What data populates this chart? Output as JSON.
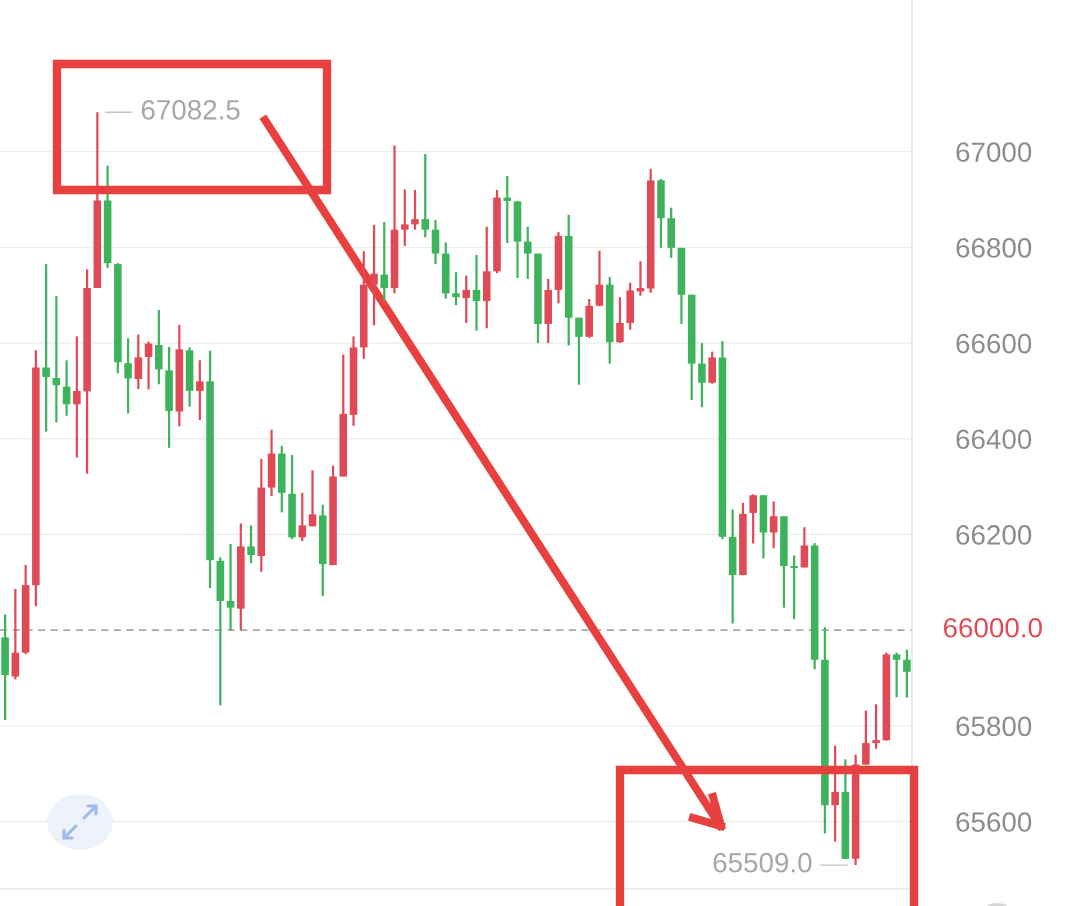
{
  "chart_data": {
    "type": "candlestick",
    "categories": [
      null,
      null,
      null,
      null,
      null,
      null,
      null,
      null,
      null,
      null,
      null,
      null,
      null,
      null,
      null,
      null,
      null,
      null,
      null,
      null,
      null,
      null,
      null,
      null,
      null,
      null,
      null,
      null,
      null,
      null,
      null,
      null,
      null,
      null,
      null,
      null,
      null,
      null,
      null,
      null,
      null,
      null,
      null,
      null,
      null,
      null,
      null,
      null,
      null,
      null,
      null,
      null,
      null,
      null,
      null,
      null,
      null,
      null,
      null,
      null,
      null,
      null,
      null,
      null,
      null,
      null,
      null,
      null,
      null,
      null,
      null,
      null,
      null,
      null,
      null,
      null,
      null,
      null,
      null,
      null,
      null,
      null,
      null,
      null,
      null,
      null,
      null,
      null,
      null
    ],
    "ohlc": [
      [
        65985,
        66033,
        65812,
        65906
      ],
      [
        65903,
        66086,
        65897,
        65953
      ],
      [
        65953,
        66136,
        65950,
        66094
      ],
      [
        66094,
        66585,
        66050,
        66549
      ],
      [
        66549,
        66765,
        66415,
        66529
      ],
      [
        66527,
        66698,
        66434,
        66512
      ],
      [
        66509,
        66564,
        66448,
        66472
      ],
      [
        66472,
        66614,
        66361,
        66500
      ],
      [
        66499,
        66754,
        66327,
        66715
      ],
      [
        66715,
        67082.5,
        66715,
        66898
      ],
      [
        66898,
        66971,
        66757,
        66767
      ],
      [
        66765,
        66767,
        66537,
        66560
      ],
      [
        66558,
        66610,
        66453,
        66526
      ],
      [
        66525,
        66618,
        66504,
        66570
      ],
      [
        66571,
        66603,
        66503,
        66599
      ],
      [
        66596,
        66669,
        66514,
        66545
      ],
      [
        66543,
        66592,
        66381,
        66458
      ],
      [
        66457,
        66638,
        66426,
        66587
      ],
      [
        66585,
        66591,
        66467,
        66500
      ],
      [
        66500,
        66564,
        66439,
        66520
      ],
      [
        66520,
        66584,
        66088,
        66146
      ],
      [
        66145,
        66152,
        65843,
        66061
      ],
      [
        66061,
        66180,
        66000,
        66047
      ],
      [
        66045,
        66223,
        66000,
        66175
      ],
      [
        66175,
        66219,
        66140,
        66157
      ],
      [
        66155,
        66358,
        66122,
        66298
      ],
      [
        66298,
        66419,
        66280,
        66369
      ],
      [
        66369,
        66385,
        66246,
        66287
      ],
      [
        66285,
        66366,
        66190,
        66194
      ],
      [
        66194,
        66287,
        66186,
        66219
      ],
      [
        66217,
        66334,
        66217,
        66242
      ],
      [
        66240,
        66262,
        66071,
        66138
      ],
      [
        66136,
        66344,
        66136,
        66321
      ],
      [
        66321,
        66576,
        66321,
        66452
      ],
      [
        66450,
        66614,
        66427,
        66591
      ],
      [
        66591,
        66792,
        66567,
        66722
      ],
      [
        66722,
        66847,
        66637,
        66745
      ],
      [
        66743,
        66853,
        66687,
        66715
      ],
      [
        66715,
        67013,
        66704,
        66837
      ],
      [
        66837,
        66921,
        66803,
        66848
      ],
      [
        66848,
        66920,
        66837,
        66859
      ],
      [
        66859,
        66995,
        66821,
        66837
      ],
      [
        66837,
        66857,
        66765,
        66787
      ],
      [
        66787,
        66810,
        66693,
        66704
      ],
      [
        66704,
        66748,
        66679,
        66696
      ],
      [
        66694,
        66741,
        66642,
        66711
      ],
      [
        66711,
        66784,
        66626,
        66688
      ],
      [
        66688,
        66843,
        66631,
        66750
      ],
      [
        66750,
        66920,
        66746,
        66904
      ],
      [
        66904,
        66949,
        66809,
        66897
      ],
      [
        66896,
        66897,
        66736,
        66812
      ],
      [
        66812,
        66843,
        66734,
        66787
      ],
      [
        66787,
        66787,
        66600,
        66640
      ],
      [
        66640,
        66734,
        66600,
        66711
      ],
      [
        66711,
        66832,
        66683,
        66824
      ],
      [
        66824,
        66868,
        66595,
        66653
      ],
      [
        66653,
        66653,
        66513,
        66613
      ],
      [
        66613,
        66692,
        66611,
        66678
      ],
      [
        66678,
        66793,
        66677,
        66722
      ],
      [
        66722,
        66738,
        66557,
        66602
      ],
      [
        66602,
        66696,
        66600,
        66642
      ],
      [
        66642,
        66726,
        66628,
        66710
      ],
      [
        66708,
        66771,
        66699,
        66715
      ],
      [
        66714,
        66964,
        66705,
        66940
      ],
      [
        66940,
        66943,
        66799,
        66861
      ],
      [
        66861,
        66883,
        66778,
        66799
      ],
      [
        66799,
        66799,
        66640,
        66701
      ],
      [
        66701,
        66701,
        66481,
        66557
      ],
      [
        66557,
        66600,
        66466,
        66517
      ],
      [
        66517,
        66582,
        66515,
        66570
      ],
      [
        66570,
        66604,
        66190,
        66195
      ],
      [
        66195,
        66252,
        66014,
        66115
      ],
      [
        66115,
        66266,
        66115,
        66243
      ],
      [
        66245,
        66284,
        66181,
        66282
      ],
      [
        66282,
        66282,
        66150,
        66204
      ],
      [
        66204,
        66269,
        66171,
        66238
      ],
      [
        66238,
        66238,
        66047,
        66134
      ],
      [
        66134,
        66156,
        66023,
        66130
      ],
      [
        66131,
        66215,
        66131,
        66177
      ],
      [
        66177,
        66182,
        65918,
        65938
      ],
      [
        65938,
        66006,
        65575,
        65634
      ],
      [
        65634,
        65759,
        65558,
        65662
      ],
      [
        65662,
        65730,
        65522,
        65522
      ],
      [
        65522,
        65740,
        65509,
        65719
      ],
      [
        65719,
        65832,
        65719,
        65764
      ],
      [
        65764,
        65845,
        65752,
        65770
      ],
      [
        65770,
        65953,
        65769,
        65949
      ],
      [
        65949,
        65953,
        65860,
        65938
      ],
      [
        65938,
        65959,
        65859,
        65913
      ]
    ],
    "colors": [
      "#3db35b",
      "#e04a56",
      "#e04a56",
      "#e04a56",
      "#3db35b",
      "#3db35b",
      "#3db35b",
      "#e04a56",
      "#e04a56",
      "#e04a56",
      "#3db35b",
      "#3db35b",
      "#3db35b",
      "#e04a56",
      "#e04a56",
      "#3db35b",
      "#3db35b",
      "#e04a56",
      "#3db35b",
      "#e04a56",
      "#3db35b",
      "#3db35b",
      "#3db35b",
      "#e04a56",
      "#3db35b",
      "#e04a56",
      "#e04a56",
      "#3db35b",
      "#3db35b",
      "#e04a56",
      "#e04a56",
      "#3db35b",
      "#e04a56",
      "#e04a56",
      "#e04a56",
      "#e04a56",
      "#e04a56",
      "#3db35b",
      "#e04a56",
      "#e04a56",
      "#e04a56",
      "#3db35b",
      "#3db35b",
      "#3db35b",
      "#3db35b",
      "#e04a56",
      "#3db35b",
      "#e04a56",
      "#e04a56",
      "#3db35b",
      "#3db35b",
      "#3db35b",
      "#3db35b",
      "#e04a56",
      "#e04a56",
      "#3db35b",
      "#3db35b",
      "#e04a56",
      "#e04a56",
      "#3db35b",
      "#e04a56",
      "#e04a56",
      "#e04a56",
      "#e04a56",
      "#3db35b",
      "#3db35b",
      "#3db35b",
      "#3db35b",
      "#3db35b",
      "#e04a56",
      "#3db35b",
      "#3db35b",
      "#e04a56",
      "#e04a56",
      "#3db35b",
      "#e04a56",
      "#3db35b",
      "#3db35b",
      "#e04a56",
      "#3db35b",
      "#3db35b",
      "#e04a56",
      "#3db35b",
      "#e04a56",
      "#e04a56",
      "#e04a56",
      "#e04a56",
      "#3db35b",
      "#3db35b"
    ],
    "ylim": [
      65459,
      67317
    ],
    "yticks": [
      65600,
      65800,
      66200,
      66400,
      66600,
      66800,
      67000
    ],
    "grid": "y",
    "tick_labels": "y",
    "ref_lines": [
      {
        "axis": "y",
        "value": 66000,
        "label": "66000.0",
        "color": "#a8a8a8",
        "line_style": "dashed"
      }
    ],
    "annotations": [
      "67082.5",
      "65509.0"
    ]
  }
}
